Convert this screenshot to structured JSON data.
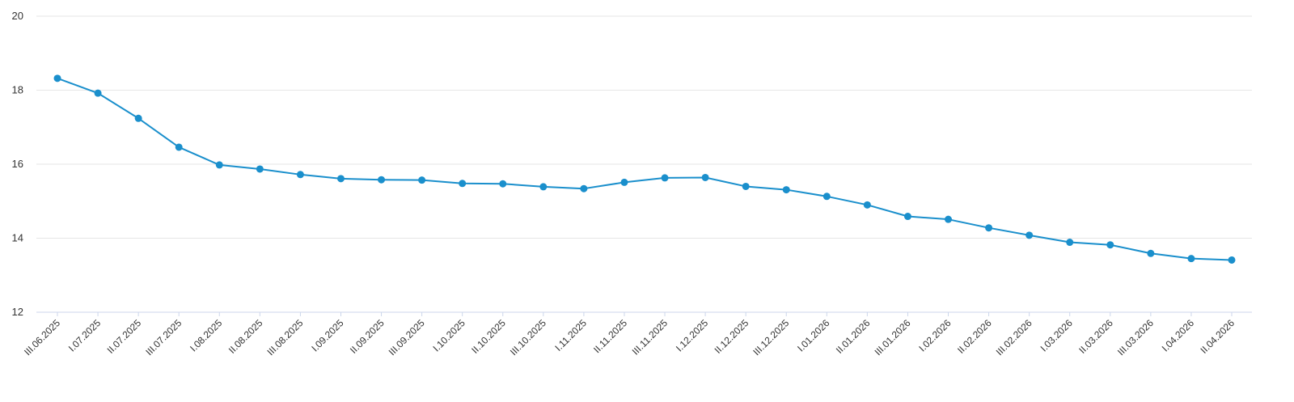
{
  "chart_data": {
    "type": "line",
    "title": "",
    "xlabel": "",
    "ylabel": "",
    "ylim": [
      12,
      20
    ],
    "yticks": [
      12,
      14,
      16,
      18,
      20
    ],
    "grid": true,
    "legend": "none",
    "categories": [
      "III.06.2025",
      "I.07.2025",
      "II.07.2025",
      "III.07.2025",
      "I.08.2025",
      "II.08.2025",
      "III.08.2025",
      "I.09.2025",
      "II.09.2025",
      "III.09.2025",
      "I.10.2025",
      "II.10.2025",
      "III.10.2025",
      "I.11.2025",
      "II.11.2025",
      "III.11.2025",
      "I.12.2025",
      "II.12.2025",
      "III.12.2025",
      "I.01.2026",
      "II.01.2026",
      "III.01.2026",
      "I.02.2026",
      "II.02.2026",
      "III.02.2026",
      "I.03.2026",
      "II.03.2026",
      "III.03.2026",
      "I.04.2026",
      "II.04.2026"
    ],
    "series": [
      {
        "color": "#1a8fcc",
        "values": [
          18.32,
          17.92,
          17.24,
          16.46,
          15.98,
          15.87,
          15.72,
          15.61,
          15.58,
          15.57,
          15.48,
          15.47,
          15.39,
          15.34,
          15.51,
          15.63,
          15.64,
          15.4,
          15.31,
          15.13,
          14.9,
          14.59,
          14.51,
          14.28,
          14.08,
          13.89,
          13.82,
          13.59,
          13.45,
          13.41
        ]
      }
    ]
  }
}
